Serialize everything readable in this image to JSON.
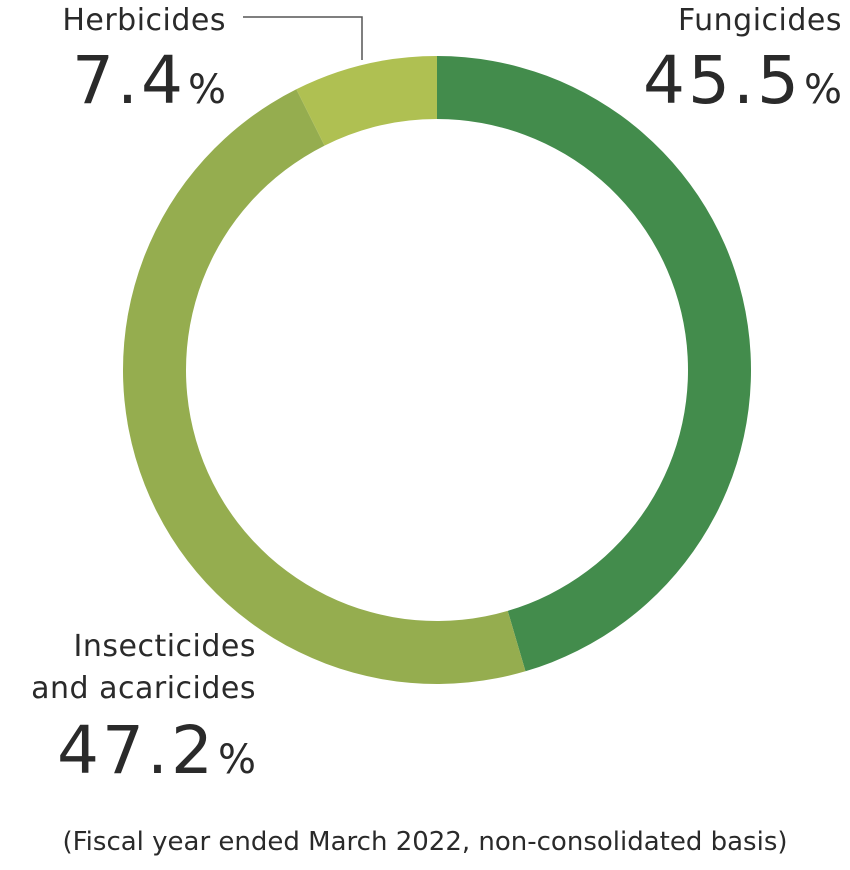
{
  "chart_data": {
    "type": "donut",
    "title": "",
    "categories": [
      "Fungicides",
      "Insecticides and acaricides",
      "Herbicides"
    ],
    "values": [
      45.5,
      47.2,
      7.4
    ],
    "unit": "%",
    "colors": [
      "#438c4c",
      "#95ad4f",
      "#afc052"
    ],
    "footnote": "(Fiscal year ended March 2022, non-consolidated basis)"
  },
  "labels": {
    "fungicides": {
      "name": "Fungicides",
      "value": "45.5",
      "unit": "%"
    },
    "insecticides": {
      "name_line1": "Insecticides",
      "name_line2": "and acaricides",
      "value": "47.2",
      "unit": "%"
    },
    "herbicides": {
      "name": "Herbicides",
      "value": "7.4",
      "unit": "%"
    }
  }
}
